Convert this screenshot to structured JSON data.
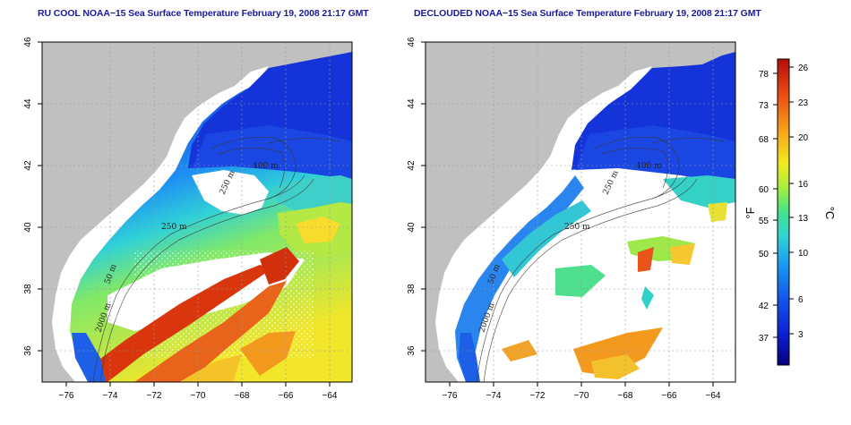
{
  "panels": [
    {
      "title": "RU COOL NOAA−15 Sea Surface Temperature February 19, 2008 21:17 GMT",
      "xticks": [
        "−76",
        "−74",
        "−72",
        "−70",
        "−68",
        "−66",
        "−64"
      ],
      "yticks": [
        "46",
        "44",
        "42",
        "40",
        "38",
        "36"
      ],
      "contour_labels": [
        "400 m",
        "250 m",
        "250 m",
        "50 m",
        "2000 m"
      ],
      "xlim": [
        -77.0,
        -63.0
      ],
      "ylim": [
        35.0,
        46.0
      ]
    },
    {
      "title": "DECLOUDED NOAA−15 Sea Surface Temperature February 19, 2008 21:17 GMT",
      "xticks": [
        "−76",
        "−74",
        "−72",
        "−70",
        "−68",
        "−66",
        "−64"
      ],
      "yticks": [
        "46",
        "44",
        "42",
        "40",
        "38",
        "36"
      ],
      "contour_labels": [
        "400 m",
        "250 m",
        "250 m",
        "50 m",
        "2000 m"
      ],
      "xlim": [
        -77.0,
        -63.0
      ],
      "ylim": [
        35.0,
        46.0
      ]
    }
  ],
  "colorbar": {
    "fahrenheit_label": "°F",
    "celsius_label": "°C",
    "fahrenheit_ticks": [
      "78",
      "73",
      "68",
      "60",
      "55",
      "50",
      "42",
      "37"
    ],
    "celsius_ticks": [
      "26",
      "23",
      "20",
      "16",
      "13",
      "10",
      "6",
      "3"
    ],
    "celsius_range": [
      0,
      27
    ],
    "colors": [
      "#08007a",
      "#0b1fd6",
      "#1357ee",
      "#1a9cf0",
      "#2ed5d6",
      "#44e38b",
      "#a8ee3c",
      "#f2ea1e",
      "#f7a71a",
      "#ed4d14",
      "#b30d0a"
    ]
  },
  "colors": {
    "land": "#c0c0c0",
    "title": "#1a1a9a",
    "cold_water": "#1a4ddf",
    "warm_water": "#d62a0c"
  }
}
